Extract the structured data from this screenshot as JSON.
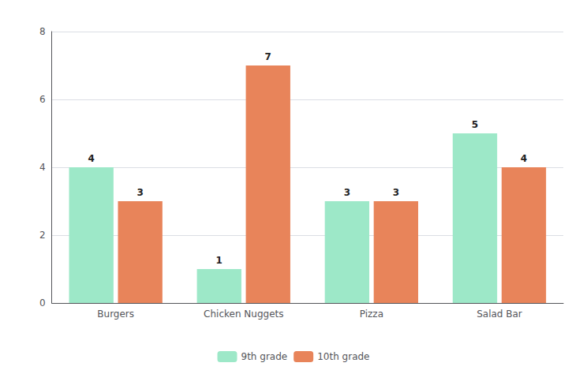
{
  "chart_data": {
    "type": "bar",
    "categories": [
      "Burgers",
      "Chicken Nuggets",
      "Pizza",
      "Salad Bar"
    ],
    "series": [
      {
        "name": "9th grade",
        "color": "#9de8c8",
        "values": [
          4,
          1,
          3,
          5
        ]
      },
      {
        "name": "10th grade",
        "color": "#e8845a",
        "values": [
          3,
          7,
          3,
          4
        ]
      }
    ],
    "ylim": [
      0,
      8
    ],
    "yticks": [
      0,
      2,
      4,
      6,
      8
    ],
    "grid": true,
    "legend": "bottom",
    "data_labels": true
  }
}
